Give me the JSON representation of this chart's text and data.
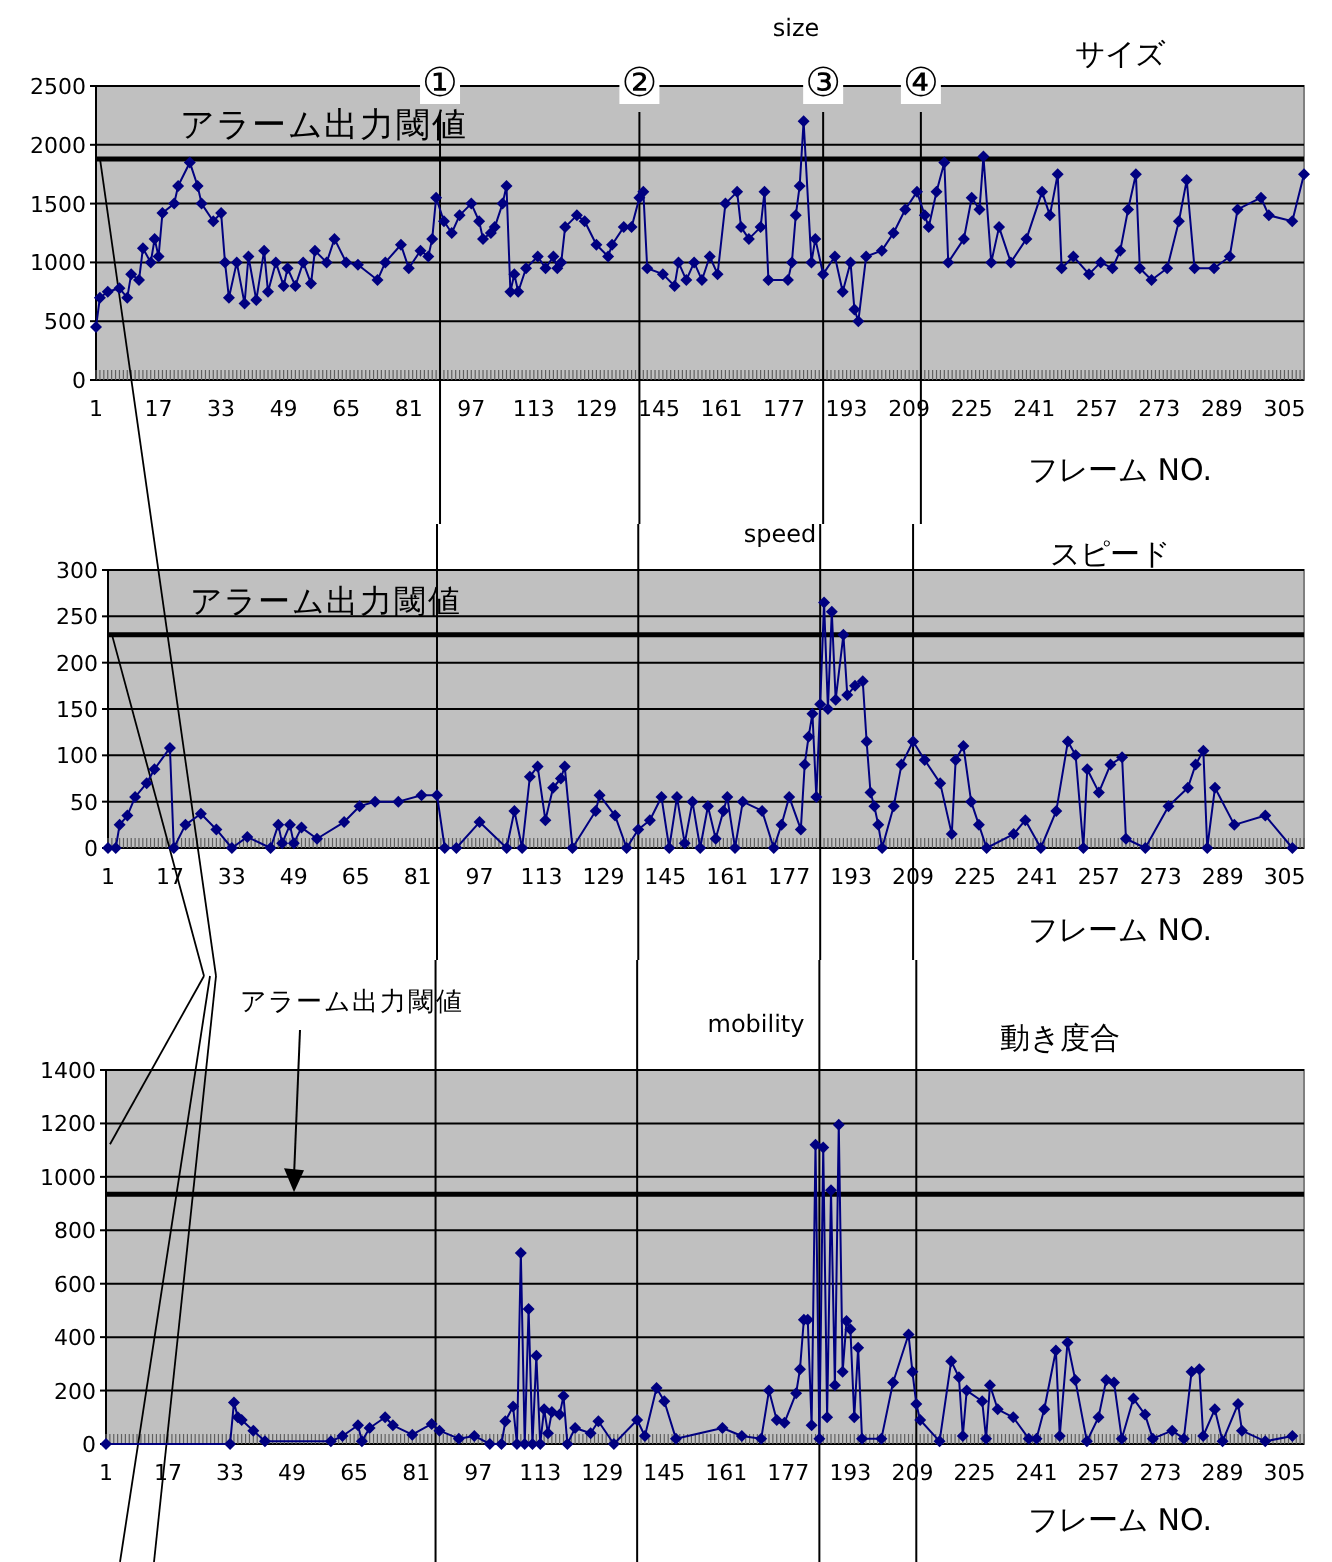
{
  "chart_data": [
    {
      "type": "line",
      "title": "サイズ",
      "annotations": [
        "size"
      ],
      "xlabel": "フレーム NO.",
      "color": "#000080",
      "marker": "diamond",
      "grid": "y",
      "xlim": [
        1,
        310
      ],
      "xticks": [
        1,
        17,
        33,
        49,
        65,
        81,
        97,
        113,
        129,
        145,
        161,
        177,
        193,
        209,
        225,
        241,
        257,
        273,
        289,
        305
      ],
      "ylim": [
        0,
        2500
      ],
      "yticks": [
        0,
        500,
        1000,
        1500,
        2000,
        2500
      ],
      "ref_lines": [
        {
          "axis": "y",
          "value": 1880,
          "label": "アラーム出力閾値"
        },
        {
          "axis": "x",
          "value": 89,
          "label": "①"
        },
        {
          "axis": "x",
          "value": 140,
          "label": "②"
        },
        {
          "axis": "x",
          "value": 187,
          "label": "③"
        },
        {
          "axis": "x",
          "value": 212,
          "label": "④"
        }
      ],
      "x": [
        1,
        2,
        4,
        7,
        9,
        10,
        12,
        13,
        15,
        16,
        17,
        18,
        21,
        22,
        25,
        27,
        28,
        31,
        33,
        34,
        35,
        37,
        39,
        40,
        42,
        44,
        45,
        47,
        49,
        50,
        52,
        54,
        56,
        57,
        60,
        62,
        65,
        68,
        73,
        75,
        79,
        81,
        84,
        86,
        87,
        88,
        90,
        92,
        94,
        97,
        99,
        100,
        102,
        103,
        105,
        106,
        107,
        108,
        109,
        111,
        114,
        116,
        118,
        119,
        120,
        121,
        124,
        126,
        129,
        132,
        133,
        136,
        138,
        140,
        141,
        142,
        146,
        149,
        150,
        152,
        154,
        156,
        158,
        160,
        162,
        165,
        166,
        168,
        171,
        172,
        173,
        178,
        179,
        180,
        181,
        182,
        184,
        185,
        187,
        190,
        192,
        194,
        195,
        196,
        198,
        202,
        205,
        208,
        211,
        213,
        214,
        216,
        218,
        219,
        223,
        225,
        227,
        228,
        230,
        232,
        235,
        239,
        243,
        245,
        247,
        248,
        251,
        255,
        258,
        261,
        263,
        265,
        267,
        268,
        271,
        275,
        278,
        280,
        282,
        287,
        291,
        293,
        299,
        301,
        307,
        310
      ],
      "values": [
        450,
        700,
        750,
        780,
        700,
        900,
        850,
        1120,
        1000,
        1200,
        1050,
        1420,
        1500,
        1650,
        1850,
        1650,
        1500,
        1350,
        1420,
        1000,
        700,
        1000,
        650,
        1050,
        680,
        1100,
        750,
        1000,
        800,
        950,
        800,
        1000,
        820,
        1100,
        1000,
        1200,
        1000,
        980,
        850,
        1000,
        1150,
        950,
        1100,
        1050,
        1200,
        1550,
        1350,
        1250,
        1400,
        1500,
        1350,
        1200,
        1250,
        1300,
        1500,
        1650,
        750,
        900,
        750,
        950,
        1050,
        950,
        1050,
        950,
        1000,
        1300,
        1400,
        1350,
        1150,
        1050,
        1150,
        1300,
        1300,
        1550,
        1600,
        950,
        900,
        800,
        1000,
        850,
        1000,
        850,
        1050,
        900,
        1500,
        1600,
        1300,
        1200,
        1300,
        1600,
        850,
        850,
        1000,
        1400,
        1650,
        2200,
        1000,
        1200,
        900,
        1050,
        750,
        1000,
        600,
        500,
        1050,
        1100,
        1250,
        1450,
        1600,
        1400,
        1300,
        1600,
        1850,
        1000,
        1200,
        1550,
        1450,
        1900,
        1000,
        1300,
        1000,
        1200,
        1600,
        1400,
        1750,
        950,
        1050,
        900,
        1000,
        950,
        1100,
        1450,
        1750,
        950,
        850,
        950,
        1350,
        1700,
        950,
        950,
        1050,
        1450,
        1550,
        1400,
        1350,
        1750
      ]
    },
    {
      "type": "line",
      "title": "スピード",
      "annotations": [
        "speed"
      ],
      "xlabel": "フレーム NO.",
      "color": "#000080",
      "marker": "diamond",
      "grid": "y",
      "xlim": [
        1,
        310
      ],
      "xticks": [
        1,
        17,
        33,
        49,
        65,
        81,
        97,
        113,
        129,
        145,
        161,
        177,
        193,
        209,
        225,
        241,
        257,
        273,
        289,
        305
      ],
      "ylim": [
        0,
        300
      ],
      "yticks": [
        0,
        50,
        100,
        150,
        200,
        250,
        300
      ],
      "ref_lines": [
        {
          "axis": "y",
          "value": 230,
          "label": "アラーム出力閾値"
        },
        {
          "axis": "x",
          "value": 86
        },
        {
          "axis": "x",
          "value": 138
        },
        {
          "axis": "x",
          "value": 185
        },
        {
          "axis": "x",
          "value": 209
        }
      ],
      "x": [
        1,
        3,
        4,
        6,
        8,
        11,
        13,
        17,
        18,
        21,
        25,
        29,
        33,
        37,
        43,
        45,
        46,
        48,
        49,
        51,
        55,
        62,
        66,
        70,
        76,
        82,
        86,
        88,
        91,
        97,
        104,
        106,
        108,
        110,
        112,
        114,
        116,
        118,
        119,
        121,
        127,
        128,
        132,
        135,
        138,
        141,
        144,
        146,
        148,
        150,
        152,
        154,
        156,
        158,
        160,
        161,
        163,
        165,
        170,
        173,
        175,
        177,
        180,
        181,
        182,
        183,
        184,
        185,
        186,
        187,
        188,
        189,
        191,
        192,
        194,
        196,
        197,
        198,
        199,
        200,
        201,
        204,
        206,
        209,
        212,
        216,
        219,
        220,
        222,
        224,
        226,
        228,
        235,
        238,
        242,
        246,
        249,
        251,
        253,
        254,
        257,
        260,
        263,
        264,
        269,
        275,
        280,
        282,
        284,
        285,
        287,
        292,
        300,
        307
      ],
      "values": [
        0,
        0,
        25,
        35,
        55,
        70,
        85,
        108,
        0,
        25,
        37,
        20,
        0,
        12,
        0,
        25,
        5,
        25,
        5,
        22,
        10,
        28,
        45,
        50,
        50,
        57,
        57,
        0,
        0,
        28,
        0,
        40,
        0,
        77,
        88,
        30,
        65,
        75,
        88,
        0,
        40,
        57,
        35,
        0,
        20,
        30,
        55,
        0,
        55,
        5,
        50,
        0,
        45,
        10,
        40,
        55,
        0,
        50,
        40,
        0,
        25,
        55,
        20,
        90,
        120,
        145,
        55,
        155,
        265,
        150,
        255,
        160,
        230,
        165,
        175,
        180,
        115,
        60,
        45,
        25,
        0,
        45,
        90,
        115,
        95,
        70,
        15,
        95,
        110,
        50,
        25,
        0,
        15,
        30,
        0,
        40,
        115,
        100,
        0,
        85,
        60,
        90,
        98,
        10,
        0,
        45,
        65,
        90,
        105,
        0,
        65,
        25,
        35,
        0
      ]
    },
    {
      "type": "line",
      "title": "動き度合",
      "annotations": [
        "mobility"
      ],
      "xlabel": "フレーム NO.",
      "color": "#000080",
      "marker": "diamond",
      "grid": "y",
      "xlim": [
        1,
        310
      ],
      "xticks": [
        1,
        17,
        33,
        49,
        65,
        81,
        97,
        113,
        129,
        145,
        161,
        177,
        193,
        209,
        225,
        241,
        257,
        273,
        289,
        305
      ],
      "ylim": [
        0,
        1400
      ],
      "yticks": [
        0,
        200,
        400,
        600,
        800,
        1000,
        1200,
        1400
      ],
      "ref_lines": [
        {
          "axis": "y",
          "value": 935,
          "label": "アラーム出力閾値"
        },
        {
          "axis": "x",
          "value": 86
        },
        {
          "axis": "x",
          "value": 138
        },
        {
          "axis": "x",
          "value": 185
        },
        {
          "axis": "x",
          "value": 210
        }
      ],
      "x": [
        1,
        33,
        34,
        35,
        36,
        39,
        42,
        59,
        62,
        66,
        67,
        69,
        73,
        75,
        80,
        85,
        87,
        92,
        96,
        100,
        103,
        104,
        106,
        107,
        108,
        109,
        110,
        111,
        112,
        113,
        114,
        115,
        116,
        118,
        119,
        120,
        122,
        126,
        128,
        132,
        138,
        140,
        143,
        145,
        148,
        160,
        165,
        170,
        172,
        174,
        176,
        179,
        180,
        181,
        182,
        183,
        184,
        185,
        186,
        187,
        188,
        189,
        190,
        191,
        192,
        193,
        194,
        195,
        196,
        201,
        204,
        208,
        209,
        210,
        211,
        216,
        219,
        221,
        222,
        223,
        227,
        228,
        229,
        231,
        235,
        239,
        241,
        243,
        246,
        247,
        249,
        251,
        254,
        257,
        259,
        261,
        263,
        266,
        269,
        271,
        276,
        279,
        281,
        283,
        284,
        287,
        289,
        293,
        294,
        300,
        307
      ],
      "values": [
        0,
        0,
        155,
        100,
        90,
        50,
        10,
        10,
        30,
        70,
        10,
        60,
        100,
        70,
        35,
        75,
        50,
        20,
        30,
        0,
        0,
        85,
        140,
        0,
        715,
        0,
        505,
        0,
        330,
        0,
        130,
        40,
        120,
        110,
        180,
        0,
        60,
        40,
        85,
        0,
        90,
        30,
        210,
        160,
        20,
        60,
        30,
        20,
        200,
        90,
        80,
        190,
        280,
        465,
        465,
        70,
        1120,
        20,
        1110,
        100,
        950,
        220,
        1195,
        270,
        460,
        430,
        100,
        360,
        20,
        20,
        230,
        410,
        270,
        150,
        90,
        10,
        310,
        250,
        30,
        200,
        160,
        20,
        220,
        130,
        100,
        20,
        20,
        130,
        350,
        30,
        380,
        240,
        10,
        100,
        240,
        230,
        20,
        170,
        110,
        20,
        50,
        20,
        270,
        280,
        30,
        130,
        10,
        150,
        50,
        10,
        30
      ]
    }
  ]
}
